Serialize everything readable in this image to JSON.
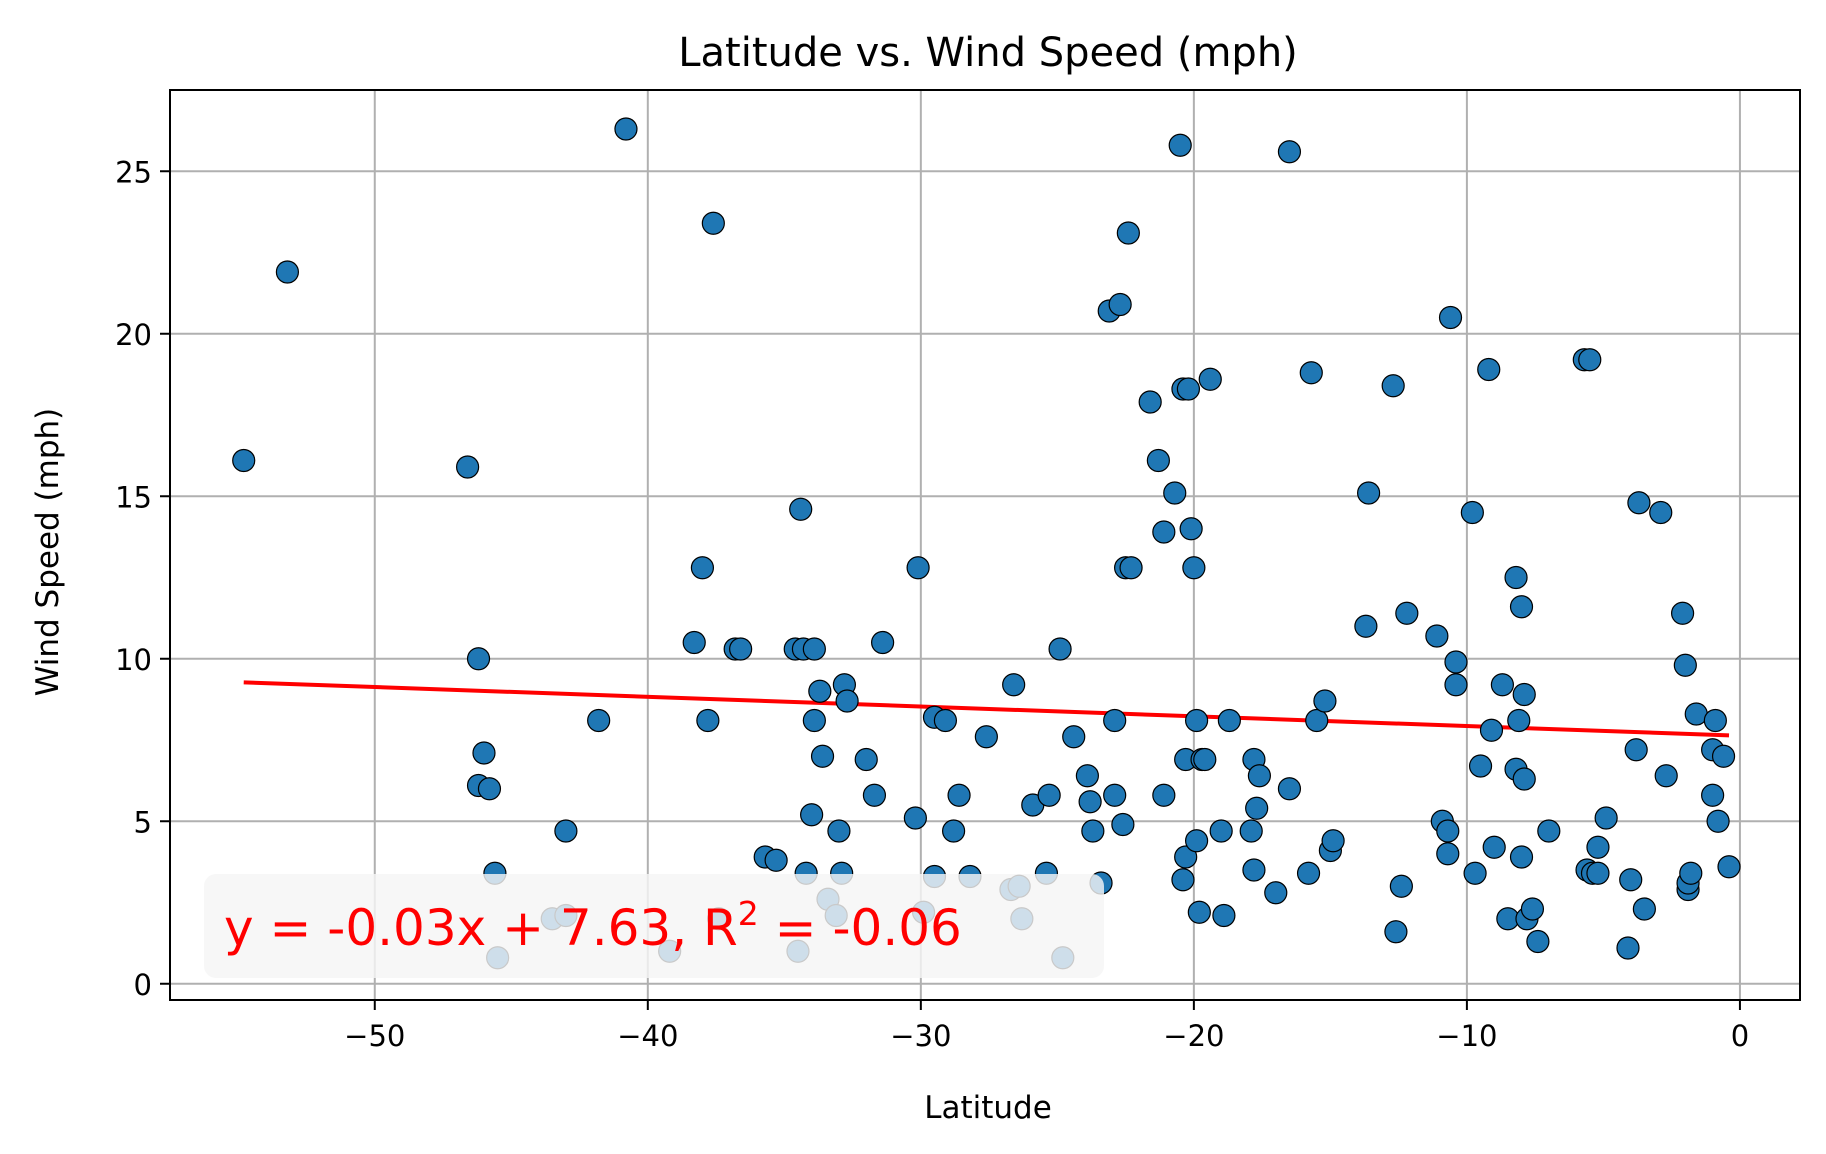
{
  "chart_data": {
    "type": "scatter",
    "title": "Latitude vs. Wind Speed (mph)",
    "xlabel": "Latitude",
    "ylabel": "Wind Speed (mph)",
    "xlim": [
      -57.5,
      2.2
    ],
    "ylim": [
      -0.5,
      27.5
    ],
    "xticks": [
      -50,
      -40,
      -30,
      -20,
      -10,
      0
    ],
    "xtick_labels": [
      "−50",
      "−40",
      "−30",
      "−20",
      "−10",
      "0"
    ],
    "yticks": [
      0,
      5,
      10,
      15,
      20,
      25
    ],
    "ytick_labels": [
      "0",
      "5",
      "10",
      "15",
      "20",
      "25"
    ],
    "grid": true,
    "marker_color": "#1f77b4",
    "marker_edge": "#000000",
    "line_color": "#ff0000",
    "regression": {
      "slope": -0.03,
      "intercept": 7.63,
      "x_range": [
        -54.8,
        -0.4
      ]
    },
    "annotation": {
      "prefix": "y = -0.03x + 7.63, R",
      "sup": "2",
      "suffix": " = -0.06",
      "position": "bottom-left",
      "box_color": "#f5f5f5"
    },
    "points": [
      [
        -54.8,
        16.1
      ],
      [
        -53.2,
        21.9
      ],
      [
        -46.6,
        15.9
      ],
      [
        -46.2,
        10.0
      ],
      [
        -46.0,
        7.1
      ],
      [
        -46.2,
        6.1
      ],
      [
        -45.8,
        6.0
      ],
      [
        -45.6,
        3.4
      ],
      [
        -45.5,
        0.8
      ],
      [
        -43.5,
        2.0
      ],
      [
        -43.0,
        2.1
      ],
      [
        -43.0,
        4.7
      ],
      [
        -41.8,
        8.1
      ],
      [
        -40.8,
        26.3
      ],
      [
        -39.2,
        1.0
      ],
      [
        -38.3,
        10.5
      ],
      [
        -38.0,
        12.8
      ],
      [
        -37.8,
        8.1
      ],
      [
        -37.6,
        23.4
      ],
      [
        -37.4,
        2.0
      ],
      [
        -36.8,
        10.3
      ],
      [
        -36.6,
        10.3
      ],
      [
        -35.7,
        3.9
      ],
      [
        -35.3,
        3.8
      ],
      [
        -34.6,
        10.3
      ],
      [
        -34.4,
        14.6
      ],
      [
        -34.5,
        1.0
      ],
      [
        -34.3,
        10.3
      ],
      [
        -34.2,
        3.4
      ],
      [
        -34.0,
        5.2
      ],
      [
        -33.9,
        10.3
      ],
      [
        -33.9,
        8.1
      ],
      [
        -33.7,
        9.0
      ],
      [
        -33.6,
        7.0
      ],
      [
        -33.4,
        2.6
      ],
      [
        -33.1,
        2.1
      ],
      [
        -33.0,
        4.7
      ],
      [
        -32.9,
        3.4
      ],
      [
        -32.8,
        9.2
      ],
      [
        -32.7,
        8.7
      ],
      [
        -32.0,
        6.9
      ],
      [
        -31.7,
        5.8
      ],
      [
        -31.4,
        10.5
      ],
      [
        -30.2,
        5.1
      ],
      [
        -30.1,
        12.8
      ],
      [
        -29.9,
        2.2
      ],
      [
        -29.5,
        8.2
      ],
      [
        -29.5,
        3.3
      ],
      [
        -29.1,
        8.1
      ],
      [
        -28.8,
        4.7
      ],
      [
        -28.6,
        5.8
      ],
      [
        -28.2,
        3.3
      ],
      [
        -27.6,
        7.6
      ],
      [
        -26.7,
        2.9
      ],
      [
        -26.6,
        9.2
      ],
      [
        -26.4,
        3.0
      ],
      [
        -26.3,
        2.0
      ],
      [
        -25.9,
        5.5
      ],
      [
        -25.4,
        3.4
      ],
      [
        -25.3,
        5.8
      ],
      [
        -24.9,
        10.3
      ],
      [
        -24.8,
        0.8
      ],
      [
        -24.4,
        7.6
      ],
      [
        -23.9,
        6.4
      ],
      [
        -23.8,
        5.6
      ],
      [
        -23.7,
        4.7
      ],
      [
        -23.4,
        3.1
      ],
      [
        -23.1,
        20.7
      ],
      [
        -22.9,
        8.1
      ],
      [
        -22.9,
        5.8
      ],
      [
        -22.7,
        20.9
      ],
      [
        -22.6,
        4.9
      ],
      [
        -22.5,
        12.8
      ],
      [
        -22.4,
        23.1
      ],
      [
        -22.3,
        12.8
      ],
      [
        -21.6,
        17.9
      ],
      [
        -21.3,
        16.1
      ],
      [
        -21.1,
        13.9
      ],
      [
        -21.1,
        5.8
      ],
      [
        -20.7,
        15.1
      ],
      [
        -20.5,
        25.8
      ],
      [
        -20.4,
        18.3
      ],
      [
        -20.4,
        3.2
      ],
      [
        -20.3,
        3.9
      ],
      [
        -20.3,
        6.9
      ],
      [
        -20.2,
        18.3
      ],
      [
        -20.1,
        14.0
      ],
      [
        -20.0,
        12.8
      ],
      [
        -19.9,
        8.1
      ],
      [
        -19.9,
        4.4
      ],
      [
        -19.8,
        2.2
      ],
      [
        -19.7,
        6.9
      ],
      [
        -19.6,
        6.9
      ],
      [
        -19.4,
        18.6
      ],
      [
        -19.0,
        4.7
      ],
      [
        -18.9,
        2.1
      ],
      [
        -18.7,
        8.1
      ],
      [
        -17.9,
        4.7
      ],
      [
        -17.8,
        3.5
      ],
      [
        -17.8,
        6.9
      ],
      [
        -17.7,
        5.4
      ],
      [
        -17.6,
        6.4
      ],
      [
        -17.0,
        2.8
      ],
      [
        -16.5,
        25.6
      ],
      [
        -16.5,
        6.0
      ],
      [
        -15.8,
        3.4
      ],
      [
        -15.7,
        18.8
      ],
      [
        -15.5,
        8.1
      ],
      [
        -15.2,
        8.7
      ],
      [
        -15.0,
        4.1
      ],
      [
        -14.9,
        4.4
      ],
      [
        -13.7,
        11.0
      ],
      [
        -13.6,
        15.1
      ],
      [
        -12.7,
        18.4
      ],
      [
        -12.6,
        1.6
      ],
      [
        -12.4,
        3.0
      ],
      [
        -12.2,
        11.4
      ],
      [
        -11.1,
        10.7
      ],
      [
        -10.9,
        5.0
      ],
      [
        -10.7,
        4.7
      ],
      [
        -10.7,
        4.0
      ],
      [
        -10.6,
        20.5
      ],
      [
        -10.4,
        9.9
      ],
      [
        -10.4,
        9.2
      ],
      [
        -9.8,
        14.5
      ],
      [
        -9.7,
        3.4
      ],
      [
        -9.5,
        6.7
      ],
      [
        -9.2,
        18.9
      ],
      [
        -9.1,
        7.8
      ],
      [
        -9.0,
        4.2
      ],
      [
        -8.7,
        9.2
      ],
      [
        -8.5,
        2.0
      ],
      [
        -8.2,
        12.5
      ],
      [
        -8.2,
        6.6
      ],
      [
        -8.1,
        8.1
      ],
      [
        -8.0,
        3.9
      ],
      [
        -8.0,
        11.6
      ],
      [
        -7.9,
        6.3
      ],
      [
        -7.9,
        8.9
      ],
      [
        -7.8,
        2.0
      ],
      [
        -7.6,
        2.3
      ],
      [
        -7.4,
        1.3
      ],
      [
        -7.0,
        4.7
      ],
      [
        -5.7,
        19.2
      ],
      [
        -5.6,
        3.5
      ],
      [
        -5.5,
        19.2
      ],
      [
        -5.4,
        3.4
      ],
      [
        -5.2,
        3.4
      ],
      [
        -5.2,
        4.2
      ],
      [
        -4.9,
        5.1
      ],
      [
        -4.1,
        1.1
      ],
      [
        -4.0,
        3.2
      ],
      [
        -3.8,
        7.2
      ],
      [
        -3.7,
        14.8
      ],
      [
        -3.5,
        2.3
      ],
      [
        -2.9,
        14.5
      ],
      [
        -2.7,
        6.4
      ],
      [
        -2.1,
        11.4
      ],
      [
        -2.0,
        9.8
      ],
      [
        -1.9,
        2.9
      ],
      [
        -1.9,
        3.1
      ],
      [
        -1.8,
        3.4
      ],
      [
        -1.6,
        8.3
      ],
      [
        -1.0,
        7.2
      ],
      [
        -1.0,
        5.8
      ],
      [
        -0.9,
        8.1
      ],
      [
        -0.8,
        5.0
      ],
      [
        -0.6,
        7.0
      ],
      [
        -0.4,
        3.6
      ]
    ]
  }
}
